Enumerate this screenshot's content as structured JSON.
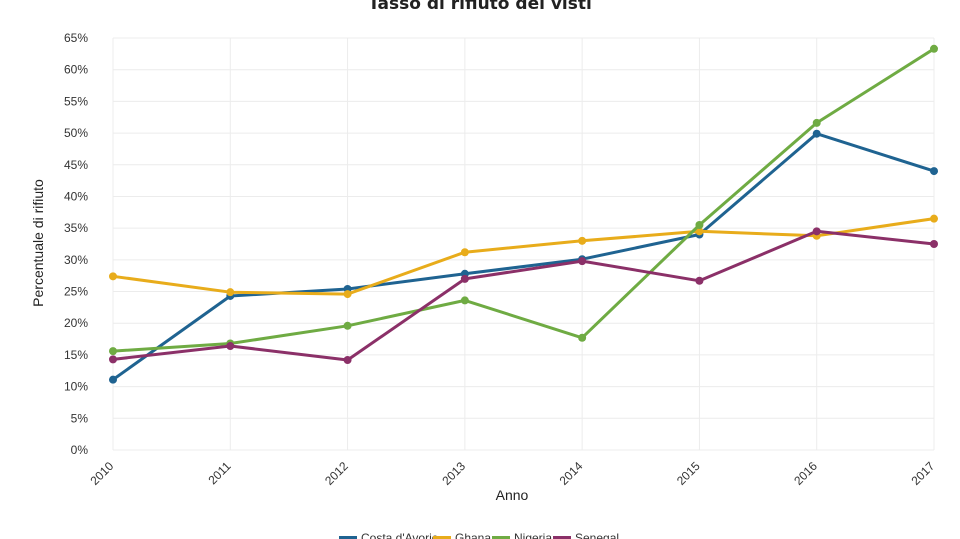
{
  "chart_data": {
    "type": "line",
    "title": "Tasso di rifiuto dei visti",
    "xlabel": "Anno",
    "ylabel": "Percentuale di rifiuto",
    "x": [
      "2010",
      "2011",
      "2012",
      "2013",
      "2014",
      "2015",
      "2016",
      "2017"
    ],
    "ylim": [
      0,
      65
    ],
    "yticks": [
      0,
      5,
      10,
      15,
      20,
      25,
      30,
      35,
      40,
      45,
      50,
      55,
      60,
      65
    ],
    "ytick_suffix": "%",
    "grid": true,
    "legend": "bottom",
    "series": [
      {
        "name": "Costa d'Avorio",
        "color": "#1f6391",
        "values": [
          11.1,
          24.3,
          25.4,
          27.8,
          30.1,
          34.0,
          49.9,
          44.0
        ]
      },
      {
        "name": "Ghana",
        "color": "#e8ac1b",
        "values": [
          27.4,
          24.9,
          24.6,
          31.2,
          33.0,
          34.5,
          33.8,
          36.5
        ]
      },
      {
        "name": "Nigeria",
        "color": "#6fab43",
        "values": [
          15.6,
          16.8,
          19.6,
          23.6,
          17.7,
          35.5,
          51.6,
          63.3
        ]
      },
      {
        "name": "Senegal",
        "color": "#8b3068",
        "values": [
          14.3,
          16.4,
          14.2,
          27.0,
          29.8,
          26.7,
          34.5,
          32.5
        ]
      }
    ]
  }
}
